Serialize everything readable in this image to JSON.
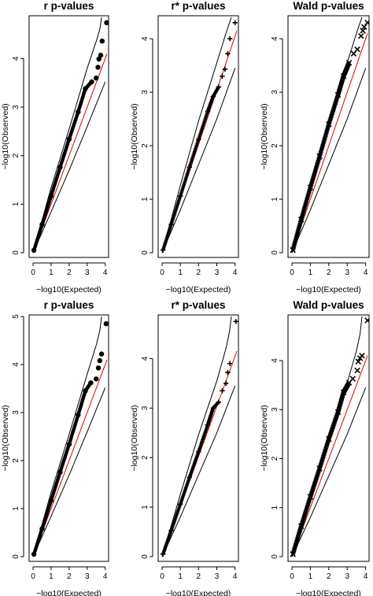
{
  "chart_data": [
    {
      "type": "scatter",
      "title": "r p-values",
      "xlabel": "−log10(Expected)",
      "ylabel": "−log10(Observed)",
      "xticks": [
        0,
        1,
        2,
        3,
        4
      ],
      "yticks": [
        0,
        1,
        2,
        3,
        4
      ],
      "xlim": [
        0,
        4.1
      ],
      "ylim": [
        0,
        4.85
      ],
      "marker": "dot",
      "points": [
        [
          0.05,
          0.05
        ],
        [
          0.5,
          0.58
        ],
        [
          1.0,
          1.17
        ],
        [
          1.5,
          1.76
        ],
        [
          2.0,
          2.34
        ],
        [
          2.5,
          2.9
        ],
        [
          2.9,
          3.38
        ],
        [
          3.25,
          3.52
        ],
        [
          3.5,
          3.6
        ],
        [
          3.6,
          3.82
        ],
        [
          3.65,
          3.99
        ],
        [
          3.75,
          4.07
        ],
        [
          3.83,
          4.36
        ],
        [
          4.08,
          4.74
        ]
      ],
      "lines": [
        {
          "name": "",
          "color": "#e00000",
          "x": [
            0,
            4.1
          ],
          "y": [
            0,
            4.1
          ]
        },
        {
          "name": "",
          "color": "#000000",
          "x": [
            0,
            1,
            2,
            3,
            3.5,
            3.7,
            3.8
          ],
          "y": [
            0,
            1.34,
            2.55,
            3.8,
            4.35,
            4.6,
            4.85
          ]
        },
        {
          "name": "",
          "color": "#000000",
          "x": [
            0,
            1,
            2,
            3,
            4
          ],
          "y": [
            0,
            0.84,
            1.7,
            2.6,
            3.52
          ]
        }
      ]
    },
    {
      "type": "scatter",
      "title": "r* p-values",
      "xlabel": "−log10(Expected)",
      "ylabel": "−log10(Observed)",
      "xticks": [
        0,
        1,
        2,
        3,
        4
      ],
      "yticks": [
        0,
        1,
        2,
        3,
        4
      ],
      "xlim": [
        0,
        4.1
      ],
      "ylim": [
        0,
        4.4
      ],
      "marker": "plus",
      "points": [
        [
          0.05,
          0.05
        ],
        [
          0.5,
          0.53
        ],
        [
          1.0,
          1.06
        ],
        [
          1.5,
          1.6
        ],
        [
          2.0,
          2.12
        ],
        [
          2.5,
          2.64
        ],
        [
          2.8,
          2.92
        ],
        [
          3.1,
          3.1
        ],
        [
          3.3,
          3.3
        ],
        [
          3.45,
          3.43
        ],
        [
          3.6,
          3.72
        ],
        [
          3.72,
          4.0
        ],
        [
          4.0,
          4.3
        ]
      ],
      "lines": [
        {
          "name": "",
          "color": "#e00000",
          "x": [
            0,
            4.1
          ],
          "y": [
            0,
            4.15
          ]
        },
        {
          "name": "",
          "color": "#000000",
          "x": [
            0,
            1,
            2,
            3,
            3.5,
            3.7,
            3.8
          ],
          "y": [
            0,
            1.26,
            2.46,
            3.55,
            4.1,
            4.3,
            4.4
          ]
        },
        {
          "name": "",
          "color": "#000000",
          "x": [
            0,
            1,
            2,
            3,
            4
          ],
          "y": [
            0,
            0.8,
            1.65,
            2.5,
            3.45
          ]
        }
      ]
    },
    {
      "type": "scatter",
      "title": "Wald p-values",
      "xlabel": "−log10(Expected)",
      "ylabel": "−log10(Observed)",
      "xticks": [
        0,
        1,
        2,
        3,
        4
      ],
      "yticks": [
        0,
        1,
        2,
        3,
        4
      ],
      "xlim": [
        0,
        4.1
      ],
      "ylim": [
        0,
        4.4
      ],
      "marker": "x",
      "points": [
        [
          0.05,
          0.05
        ],
        [
          0.5,
          0.62
        ],
        [
          1.0,
          1.22
        ],
        [
          1.5,
          1.8
        ],
        [
          2.0,
          2.4
        ],
        [
          2.5,
          2.95
        ],
        [
          2.8,
          3.3
        ],
        [
          3.1,
          3.55
        ],
        [
          3.35,
          3.72
        ],
        [
          3.55,
          3.8
        ],
        [
          3.75,
          4.05
        ],
        [
          3.85,
          4.15
        ],
        [
          3.92,
          4.22
        ],
        [
          4.1,
          4.3
        ]
      ],
      "lines": [
        {
          "name": "",
          "color": "#e00000",
          "x": [
            0,
            4.1
          ],
          "y": [
            0,
            4.1
          ]
        },
        {
          "name": "",
          "color": "#000000",
          "x": [
            0,
            1,
            2,
            3,
            3.5,
            3.7,
            3.8
          ],
          "y": [
            0,
            1.26,
            2.46,
            3.55,
            4.1,
            4.3,
            4.4
          ]
        },
        {
          "name": "",
          "color": "#000000",
          "x": [
            0,
            1,
            2,
            3,
            4
          ],
          "y": [
            0,
            0.8,
            1.65,
            2.5,
            3.45
          ]
        }
      ]
    },
    {
      "type": "scatter",
      "title": "r p-values",
      "xlabel": "−log10(Expected)",
      "ylabel": "−log10(Observed)",
      "xticks": [
        0,
        1,
        2,
        3,
        4
      ],
      "yticks": [
        0,
        1,
        2,
        3,
        4,
        5
      ],
      "xlim": [
        0,
        4.1
      ],
      "ylim": [
        0,
        5.0
      ],
      "marker": "dot",
      "points": [
        [
          0.05,
          0.05
        ],
        [
          0.5,
          0.58
        ],
        [
          1.0,
          1.17
        ],
        [
          1.5,
          1.76
        ],
        [
          2.0,
          2.34
        ],
        [
          2.5,
          2.95
        ],
        [
          2.9,
          3.45
        ],
        [
          3.2,
          3.62
        ],
        [
          3.5,
          3.7
        ],
        [
          3.62,
          3.93
        ],
        [
          3.7,
          4.08
        ],
        [
          3.8,
          4.22
        ],
        [
          4.05,
          4.85
        ]
      ],
      "lines": [
        {
          "name": "",
          "color": "#e00000",
          "x": [
            0,
            4.1
          ],
          "y": [
            0,
            4.1
          ]
        },
        {
          "name": "",
          "color": "#000000",
          "x": [
            0,
            1,
            2,
            3,
            3.5,
            3.7,
            3.8
          ],
          "y": [
            0,
            1.34,
            2.55,
            3.8,
            4.4,
            4.7,
            5.0
          ]
        },
        {
          "name": "",
          "color": "#000000",
          "x": [
            0,
            1,
            2,
            3,
            4
          ],
          "y": [
            0,
            0.84,
            1.7,
            2.6,
            3.52
          ]
        }
      ]
    },
    {
      "type": "scatter",
      "title": "r* p-values",
      "xlabel": "−log10(Expected)",
      "ylabel": "−log10(Observed)",
      "xticks": [
        0,
        1,
        2,
        3,
        4
      ],
      "yticks": [
        0,
        1,
        2,
        3,
        4
      ],
      "xlim": [
        0,
        4.1
      ],
      "ylim": [
        0,
        4.85
      ],
      "marker": "plus",
      "points": [
        [
          0.05,
          0.05
        ],
        [
          0.5,
          0.53
        ],
        [
          1.0,
          1.06
        ],
        [
          1.5,
          1.6
        ],
        [
          2.0,
          2.12
        ],
        [
          2.5,
          2.66
        ],
        [
          2.8,
          3.0
        ],
        [
          3.1,
          3.12
        ],
        [
          3.3,
          3.35
        ],
        [
          3.5,
          3.5
        ],
        [
          3.6,
          3.72
        ],
        [
          3.72,
          3.9
        ],
        [
          4.05,
          4.75
        ]
      ],
      "lines": [
        {
          "name": "",
          "color": "#e00000",
          "x": [
            0,
            4.1
          ],
          "y": [
            0,
            4.15
          ]
        },
        {
          "name": "",
          "color": "#000000",
          "x": [
            0,
            1,
            2,
            3,
            3.5,
            3.7,
            3.8
          ],
          "y": [
            0,
            1.26,
            2.46,
            3.55,
            4.2,
            4.55,
            4.85
          ]
        },
        {
          "name": "",
          "color": "#000000",
          "x": [
            0,
            1,
            2,
            3,
            4
          ],
          "y": [
            0,
            0.8,
            1.65,
            2.5,
            3.45
          ]
        }
      ]
    },
    {
      "type": "scatter",
      "title": "Wald p-values",
      "xlabel": "−log10(Expected)",
      "ylabel": "−log10(Observed)",
      "xticks": [
        0,
        1,
        2,
        3,
        4
      ],
      "yticks": [
        0,
        1,
        2,
        3,
        4
      ],
      "xlim": [
        0,
        4.1
      ],
      "ylim": [
        0,
        4.9
      ],
      "marker": "x",
      "points": [
        [
          0.05,
          0.05
        ],
        [
          0.5,
          0.62
        ],
        [
          1.0,
          1.22
        ],
        [
          1.5,
          1.8
        ],
        [
          2.0,
          2.4
        ],
        [
          2.5,
          2.95
        ],
        [
          2.8,
          3.35
        ],
        [
          3.1,
          3.55
        ],
        [
          3.3,
          3.63
        ],
        [
          3.55,
          3.8
        ],
        [
          3.6,
          3.98
        ],
        [
          3.7,
          4.05
        ],
        [
          3.8,
          4.1
        ],
        [
          4.1,
          4.82
        ]
      ],
      "lines": [
        {
          "name": "",
          "color": "#e00000",
          "x": [
            0,
            4.1
          ],
          "y": [
            0,
            4.1
          ]
        },
        {
          "name": "",
          "color": "#000000",
          "x": [
            0,
            1,
            2,
            3,
            3.5,
            3.7,
            3.8
          ],
          "y": [
            0,
            1.26,
            2.46,
            3.55,
            4.2,
            4.55,
            4.9
          ]
        },
        {
          "name": "",
          "color": "#000000",
          "x": [
            0,
            1,
            2,
            3,
            4
          ],
          "y": [
            0,
            0.8,
            1.65,
            2.5,
            3.45
          ]
        }
      ]
    }
  ]
}
